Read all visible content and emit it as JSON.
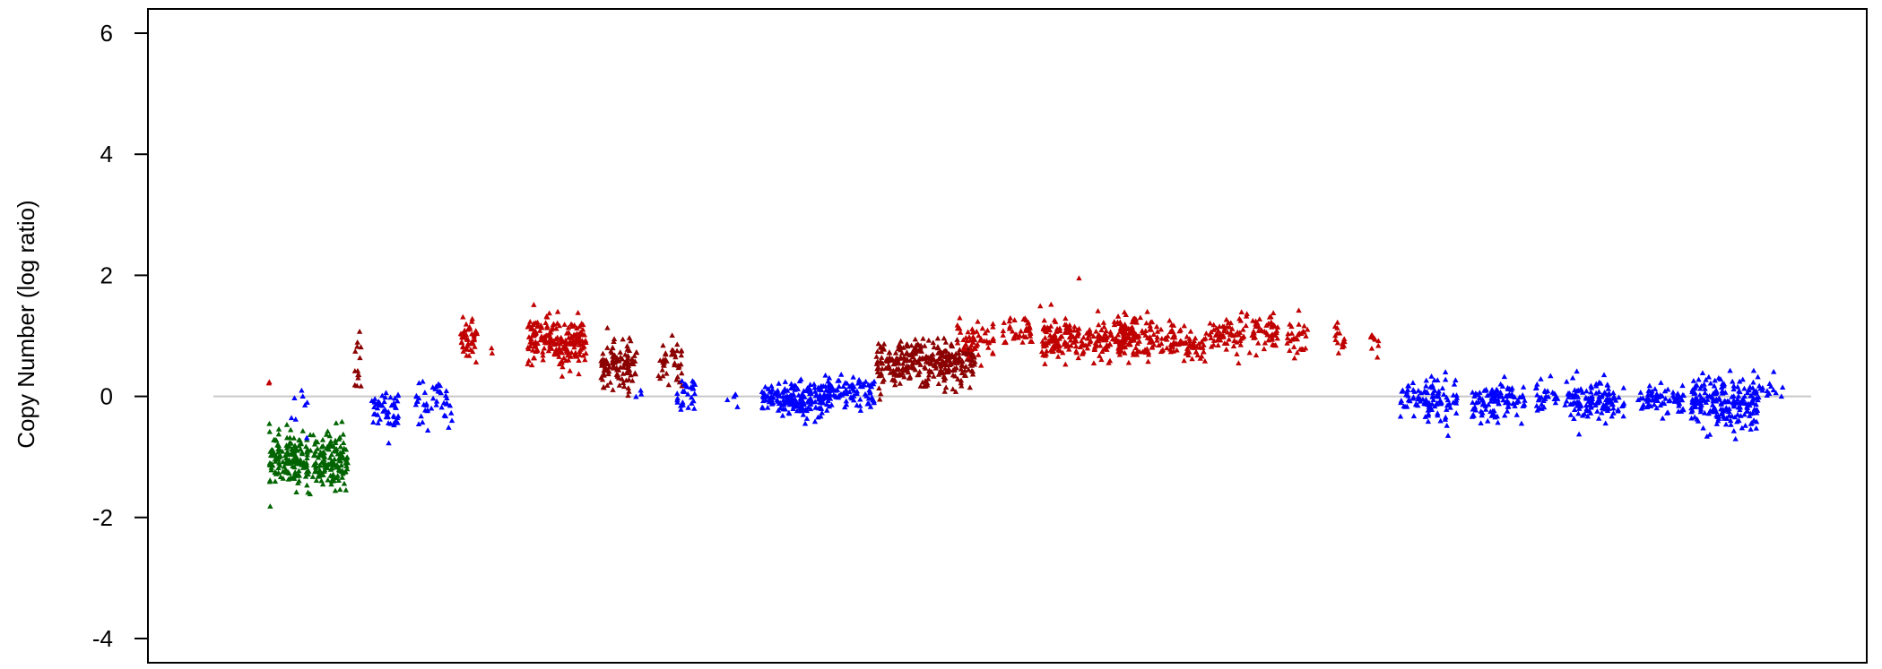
{
  "chart_data": {
    "type": "scatter",
    "title": "",
    "xlabel": "",
    "ylabel": "Copy Number (log ratio)",
    "ylim": [
      -4.4,
      6.4
    ],
    "yticks": [
      {
        "value": 6,
        "label": "6"
      },
      {
        "value": 4,
        "label": "4"
      },
      {
        "value": 2,
        "label": "2"
      },
      {
        "value": 0,
        "label": "0"
      },
      {
        "value": -2,
        "label": "-2"
      },
      {
        "value": -4,
        "label": "-4"
      }
    ],
    "xlim": [
      0,
      1000
    ],
    "grid": false,
    "reference_line": {
      "y": 0,
      "color": "#c8c8c8"
    },
    "marker": "triangle",
    "colors": {
      "loss": "#006400",
      "neutral": "#0000ff",
      "gain_dark": "#8b0000",
      "gain": "#c00000"
    },
    "clusters": [
      {
        "color_key": "gain",
        "x_range": [
          41,
          42
        ],
        "y_mean": 0.25,
        "y_sd": 0.03,
        "n": 2
      },
      {
        "color_key": "loss",
        "x_range": [
          42,
          101
        ],
        "y_mean": -1.05,
        "y_sd": 0.22,
        "n": 300
      },
      {
        "color_key": "neutral",
        "x_range": [
          56,
          74
        ],
        "y_mean": -0.2,
        "y_sd": 0.2,
        "n": 8
      },
      {
        "color_key": "gain_dark",
        "x_range": [
          106,
          111
        ],
        "y_mean": 0.55,
        "y_sd": 0.3,
        "n": 14
      },
      {
        "color_key": "neutral",
        "x_range": [
          119,
          140
        ],
        "y_mean": -0.25,
        "y_sd": 0.18,
        "n": 50
      },
      {
        "color_key": "neutral",
        "x_range": [
          152,
          180
        ],
        "y_mean": -0.15,
        "y_sd": 0.17,
        "n": 45
      },
      {
        "color_key": "gain",
        "x_range": [
          185,
          198
        ],
        "y_mean": 0.95,
        "y_sd": 0.15,
        "n": 45
      },
      {
        "color_key": "gain",
        "x_range": [
          208,
          210
        ],
        "y_mean": 0.75,
        "y_sd": 0.04,
        "n": 2
      },
      {
        "color_key": "gain",
        "x_range": [
          236,
          280
        ],
        "y_mean": 0.9,
        "y_sd": 0.2,
        "n": 210
      },
      {
        "color_key": "gain_dark",
        "x_range": [
          291,
          318
        ],
        "y_mean": 0.5,
        "y_sd": 0.2,
        "n": 110
      },
      {
        "color_key": "neutral",
        "x_range": [
          317,
          322
        ],
        "y_mean": 0.05,
        "y_sd": 0.05,
        "n": 3
      },
      {
        "color_key": "gain_dark",
        "x_range": [
          333,
          352
        ],
        "y_mean": 0.55,
        "y_sd": 0.18,
        "n": 40
      },
      {
        "color_key": "neutral",
        "x_range": [
          347,
          362
        ],
        "y_mean": 0.05,
        "y_sd": 0.2,
        "n": 30
      },
      {
        "color_key": "neutral",
        "x_range": [
          385,
          395
        ],
        "y_mean": 0.0,
        "y_sd": 0.1,
        "n": 5
      },
      {
        "color_key": "neutral",
        "x_range": [
          412,
          458
        ],
        "y_mean": -0.05,
        "y_sd": 0.14,
        "n": 170
      },
      {
        "color_key": "neutral",
        "x_range": [
          455,
          498
        ],
        "y_mean": 0.05,
        "y_sd": 0.14,
        "n": 110
      },
      {
        "color_key": "gain_dark",
        "x_range": [
          498,
          572
        ],
        "y_mean": 0.55,
        "y_sd": 0.18,
        "n": 330
      },
      {
        "color_key": "gain",
        "x_range": [
          558,
          587
        ],
        "y_mean": 0.95,
        "y_sd": 0.15,
        "n": 50
      },
      {
        "color_key": "gain",
        "x_range": [
          593,
          615
        ],
        "y_mean": 1.05,
        "y_sd": 0.13,
        "n": 40
      },
      {
        "color_key": "gain",
        "x_range": [
          617,
          645
        ],
        "y_mean": 1.5,
        "y_sd": 0.05,
        "n": 2
      },
      {
        "color_key": "gain",
        "x_range": [
          622,
          692
        ],
        "y_mean": 0.95,
        "y_sd": 0.17,
        "n": 230
      },
      {
        "color_key": "gain",
        "x_range": [
          680,
          722
        ],
        "y_mean": 0.95,
        "y_sd": 0.18,
        "n": 110
      },
      {
        "color_key": "gain",
        "x_range": [
          718,
          746
        ],
        "y_mean": 0.85,
        "y_sd": 0.15,
        "n": 60
      },
      {
        "color_key": "gain",
        "x_range": [
          650,
          652
        ],
        "y_mean": 1.95,
        "y_sd": 0.02,
        "n": 1
      },
      {
        "color_key": "gain",
        "x_range": [
          748,
          800
        ],
        "y_mean": 1.0,
        "y_sd": 0.15,
        "n": 120
      },
      {
        "color_key": "gain",
        "x_range": [
          806,
          822
        ],
        "y_mean": 0.95,
        "y_sd": 0.15,
        "n": 30
      },
      {
        "color_key": "gain",
        "x_range": [
          842,
          850
        ],
        "y_mean": 1.0,
        "y_sd": 0.2,
        "n": 15
      },
      {
        "color_key": "gain",
        "x_range": [
          868,
          876
        ],
        "y_mean": 0.9,
        "y_sd": 0.15,
        "n": 10
      },
      {
        "color_key": "neutral",
        "x_range": [
          890,
          910
        ],
        "y_mean": -0.05,
        "y_sd": 0.15,
        "n": 35
      },
      {
        "color_key": "neutral",
        "x_range": [
          910,
          935
        ],
        "y_mean": -0.05,
        "y_sd": 0.18,
        "n": 70
      },
      {
        "color_key": "neutral",
        "x_range": [
          945,
          985
        ],
        "y_mean": -0.05,
        "y_sd": 0.15,
        "n": 110
      },
      {
        "color_key": "neutral",
        "x_range": [
          992,
          1010
        ],
        "y_mean": 0.0,
        "y_sd": 0.12,
        "n": 30
      },
      {
        "color_key": "neutral",
        "x_range": [
          1015,
          1060
        ],
        "y_mean": -0.05,
        "y_sd": 0.17,
        "n": 130
      },
      {
        "color_key": "neutral",
        "x_range": [
          1070,
          1105
        ],
        "y_mean": -0.05,
        "y_sd": 0.15,
        "n": 70
      },
      {
        "color_key": "neutral",
        "x_range": [
          1110,
          1160
        ],
        "y_mean": -0.1,
        "y_sd": 0.2,
        "n": 220
      },
      {
        "color_key": "neutral",
        "x_range": [
          1160,
          1180
        ],
        "y_mean": 0.05,
        "y_sd": 0.1,
        "n": 15
      }
    ],
    "x_scale_max": 1200
  }
}
